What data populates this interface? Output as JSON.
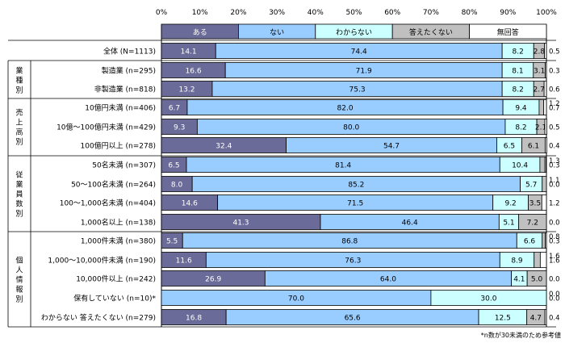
{
  "chart_data": {
    "type": "bar",
    "stacked": "100%",
    "orientation": "horizontal",
    "xlim": [
      0,
      100
    ],
    "x_ticks": [
      "0%",
      "10%",
      "20%",
      "30%",
      "40%",
      "50%",
      "60%",
      "70%",
      "80%",
      "90%",
      "100%"
    ],
    "legend": [
      {
        "name": "ある",
        "color": "#6b6b99"
      },
      {
        "name": "ない",
        "color": "#99ccff"
      },
      {
        "name": "わからない",
        "color": "#ccffff"
      },
      {
        "name": "答えたくない",
        "color": "#c0c0c0"
      },
      {
        "name": "無回答",
        "color": "#ffffff"
      }
    ],
    "groups": [
      {
        "label": "",
        "rows": [
          0
        ]
      },
      {
        "label": "業種別",
        "rows": [
          1,
          2
        ]
      },
      {
        "label": "売上高別",
        "rows": [
          3,
          4,
          5
        ]
      },
      {
        "label": "従業員数別",
        "rows": [
          6,
          7,
          8,
          9
        ]
      },
      {
        "label": "個人情報別",
        "rows": [
          10,
          11,
          12,
          13,
          14
        ]
      }
    ],
    "rows": [
      {
        "label": "全体 (N=1113)",
        "values": [
          14.1,
          74.4,
          8.2,
          2.8,
          0.5
        ]
      },
      {
        "label": "製造業 (n=295)",
        "values": [
          16.6,
          71.9,
          8.1,
          3.1,
          0.3
        ]
      },
      {
        "label": "非製造業 (n=818)",
        "values": [
          13.2,
          75.3,
          8.2,
          2.7,
          0.6
        ]
      },
      {
        "label": "10億円未満 (n=406)",
        "values": [
          6.7,
          82.0,
          9.4,
          1.2,
          0.7
        ]
      },
      {
        "label": "10億～100億円未満 (n=429)",
        "values": [
          9.3,
          80.0,
          8.2,
          2.1,
          0.5
        ]
      },
      {
        "label": "100億円以上 (n=278)",
        "values": [
          32.4,
          54.7,
          6.5,
          6.1,
          0.4
        ]
      },
      {
        "label": "50名未満 (n=307)",
        "values": [
          6.5,
          81.4,
          10.4,
          1.3,
          0.3
        ]
      },
      {
        "label": "50～100名未満 (n=264)",
        "values": [
          8.0,
          85.2,
          5.7,
          1.1,
          0.0
        ]
      },
      {
        "label": "100～1,000名未満 (n=404)",
        "values": [
          14.6,
          71.5,
          9.2,
          3.5,
          1.2
        ]
      },
      {
        "label": "1,000名以上 (n=138)",
        "values": [
          41.3,
          46.4,
          5.1,
          7.2,
          0.0
        ]
      },
      {
        "label": "1,000件未満 (n=380)",
        "values": [
          5.5,
          86.8,
          6.6,
          0.8,
          0.3
        ]
      },
      {
        "label": "1,000～10,000件未満 (n=190)",
        "values": [
          11.6,
          76.3,
          8.9,
          1.6,
          1.6
        ]
      },
      {
        "label": "10,000件以上 (n=242)",
        "values": [
          26.9,
          64.0,
          4.1,
          5.0,
          0.0
        ]
      },
      {
        "label": "保有していない (n=10)*",
        "values": [
          0.0,
          70.0,
          30.0,
          0.0,
          0.0
        ]
      },
      {
        "label": "わからない 答えたくない (n=279)",
        "values": [
          16.8,
          65.6,
          12.5,
          4.7,
          0.4
        ]
      }
    ],
    "display_labels": [
      [
        "14.1",
        "74.4",
        "8.2",
        "2.8",
        "0.5"
      ],
      [
        "16.6",
        "71.9",
        "8.1",
        "3.1",
        "0.3"
      ],
      [
        "13.2",
        "75.3",
        "8.2",
        "2.7",
        "0.6"
      ],
      [
        "6.7",
        "82.0",
        "9.4",
        "1.2",
        "0.7"
      ],
      [
        "9.3",
        "80.0",
        "8.2",
        "2.1",
        "0.5"
      ],
      [
        "32.4",
        "54.7",
        "6.5",
        "6.1",
        "0.4"
      ],
      [
        "6.5",
        "81.4",
        "10.4",
        "1.3",
        "0.3"
      ],
      [
        "8.0",
        "85.2",
        "5.7",
        "1.1",
        "0.0"
      ],
      [
        "14.6",
        "71.5",
        "9.2",
        "3.5",
        "1.2"
      ],
      [
        "41.3",
        "46.4",
        "5.1",
        "7.2",
        "0.0"
      ],
      [
        "5.5",
        "86.8",
        "6.6",
        "0.8",
        "0.3"
      ],
      [
        "11.6",
        "76.3",
        "8.9",
        "1.6",
        "1.6"
      ],
      [
        "26.9",
        "64.0",
        "4.1",
        "5.0",
        "0.0"
      ],
      [
        "0.0",
        "70.0",
        "30.0",
        "0.0",
        "0.0"
      ],
      [
        "16.8",
        "65.6",
        "12.5",
        "4.7",
        "0.4"
      ]
    ],
    "footnote": "*n数が30未満のため参考値"
  }
}
